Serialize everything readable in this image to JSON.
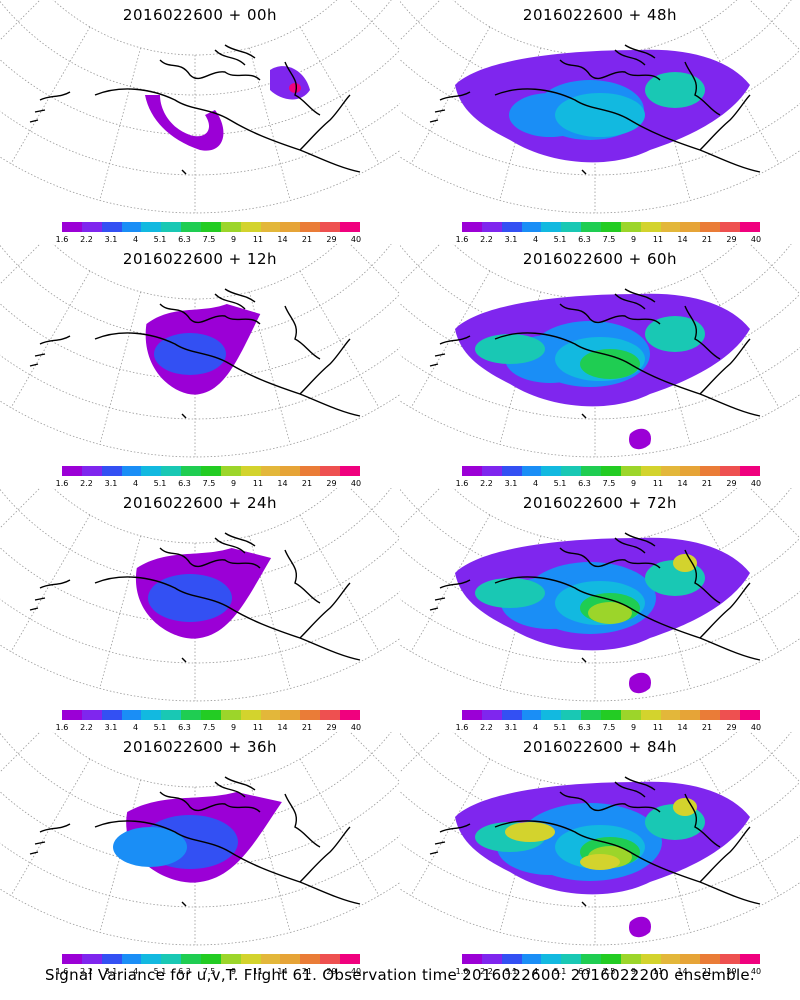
{
  "scale": {
    "colors": [
      "#9b00d6",
      "#7f26ee",
      "#3350f3",
      "#1a8ef6",
      "#12b9e0",
      "#19c8b4",
      "#1fcd52",
      "#23cc23",
      "#9cd52a",
      "#d3d32d",
      "#e3b73a",
      "#e6a437",
      "#ea7c37",
      "#ee5050",
      "#f0007e"
    ],
    "labels": [
      "1.6",
      "2.2",
      "3.1",
      "4",
      "5.1",
      "6.3",
      "7.5",
      "9",
      "11",
      "14",
      "21",
      "29",
      "40"
    ]
  },
  "panels": [
    {
      "title": "2016022600  + 00h",
      "level": 0
    },
    {
      "title": "2016022600  + 48h",
      "level": 4
    },
    {
      "title": "2016022600  + 12h",
      "level": 1
    },
    {
      "title": "2016022600  + 60h",
      "level": 5
    },
    {
      "title": "2016022600  + 24h",
      "level": 2
    },
    {
      "title": "2016022600  + 72h",
      "level": 6
    },
    {
      "title": "2016022600  + 36h",
      "level": 3
    },
    {
      "title": "2016022600  + 84h",
      "level": 7
    }
  ],
  "footer": "Signal Variance for u,v,T. Flight 61. Observation time 2016022600. 2016022200 ensemble."
}
